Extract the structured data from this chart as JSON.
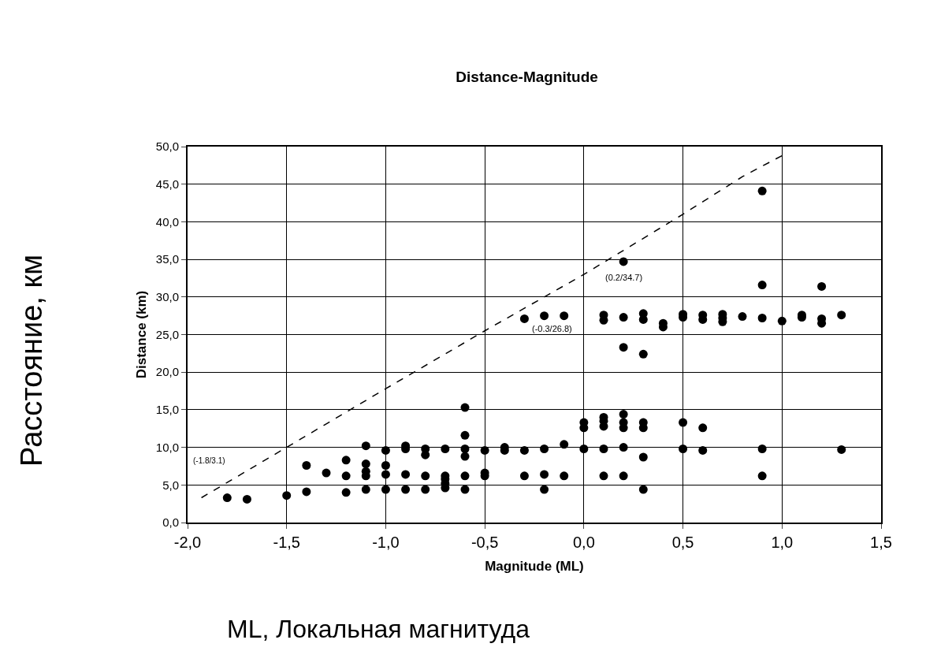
{
  "chart_data": {
    "type": "scatter",
    "title": "Distance-Magnitude",
    "xlabel": "Magnitude (ML)",
    "ylabel": "Distance (km)",
    "series": [
      {
        "type": "scatter",
        "color": "#000000",
        "marker": "circle",
        "x": [
          -1.8,
          -1.7,
          -1.5,
          -1.4,
          -1.4,
          -1.3,
          -1.2,
          -1.2,
          -1.2,
          -1.1,
          -1.1,
          -1.1,
          -1.1,
          -1.1,
          -1.0,
          -1.0,
          -1.0,
          -1.0,
          -0.9,
          -0.9,
          -0.9,
          -0.9,
          -0.8,
          -0.8,
          -0.8,
          -0.8,
          -0.7,
          -0.7,
          -0.7,
          -0.7,
          -0.7,
          -0.6,
          -0.6,
          -0.6,
          -0.6,
          -0.6,
          -0.6,
          -0.5,
          -0.5,
          -0.5,
          -0.4,
          -0.4,
          -0.3,
          -0.3,
          -0.3,
          -0.2,
          -0.2,
          -0.2,
          -0.2,
          -0.1,
          -0.1,
          -0.1,
          0.0,
          0.0,
          0.0,
          0.1,
          0.1,
          0.1,
          0.1,
          0.1,
          0.1,
          0.1,
          0.2,
          0.2,
          0.2,
          0.2,
          0.2,
          0.2,
          0.2,
          0.2,
          0.3,
          0.3,
          0.3,
          0.3,
          0.3,
          0.3,
          0.3,
          0.4,
          0.4,
          0.5,
          0.5,
          0.5,
          0.5,
          0.6,
          0.6,
          0.6,
          0.6,
          0.7,
          0.7,
          0.7,
          0.8,
          0.9,
          0.9,
          0.9,
          0.9,
          0.9,
          1.0,
          1.1,
          1.1,
          1.2,
          1.2,
          1.2,
          1.3,
          1.3
        ],
        "values": [
          3.3,
          3.1,
          3.6,
          4.1,
          7.6,
          6.6,
          4.0,
          6.2,
          8.3,
          4.4,
          6.2,
          6.8,
          7.8,
          10.2,
          4.4,
          6.4,
          7.6,
          9.6,
          4.4,
          6.4,
          9.8,
          10.2,
          4.4,
          6.2,
          9.0,
          9.8,
          4.6,
          5.2,
          5.8,
          6.2,
          9.8,
          4.4,
          6.2,
          8.8,
          9.8,
          11.6,
          15.3,
          6.2,
          6.6,
          9.6,
          9.6,
          10.0,
          6.2,
          9.6,
          27.1,
          4.4,
          6.4,
          9.8,
          27.5,
          6.2,
          10.4,
          27.5,
          9.8,
          12.6,
          13.3,
          6.2,
          9.8,
          12.8,
          13.5,
          14.0,
          26.9,
          27.6,
          6.2,
          10.0,
          12.6,
          13.3,
          14.4,
          23.3,
          27.3,
          34.7,
          4.4,
          8.7,
          12.6,
          13.3,
          22.4,
          27.0,
          27.8,
          26.0,
          26.5,
          9.8,
          13.3,
          27.3,
          27.7,
          9.6,
          12.6,
          27.0,
          27.6,
          26.7,
          27.2,
          27.7,
          27.4,
          6.2,
          9.8,
          27.2,
          31.6,
          44.1,
          26.8,
          27.3,
          27.6,
          26.5,
          27.1,
          31.4,
          9.7,
          27.6
        ]
      },
      {
        "type": "line",
        "color": "#000000",
        "marker": "none",
        "line_style": "dashed",
        "x": [
          -1.93,
          -1.5,
          -1.0,
          -0.5,
          0.0,
          0.5,
          0.8,
          1.0
        ],
        "values": [
          3.3,
          10.0,
          17.8,
          25.5,
          33.0,
          41.0,
          46.0,
          48.8
        ]
      }
    ],
    "xlim": [
      -2.0,
      1.5
    ],
    "xticks": [
      {
        "value": -2.0,
        "label": "-2,0"
      },
      {
        "value": -1.5,
        "label": "-1,5"
      },
      {
        "value": -1.0,
        "label": "-1,0"
      },
      {
        "value": -0.5,
        "label": "-0,5"
      },
      {
        "value": 0.0,
        "label": "0,0"
      },
      {
        "value": 0.5,
        "label": "0,5"
      },
      {
        "value": 1.0,
        "label": "1,0"
      },
      {
        "value": 1.5,
        "label": "1,5"
      }
    ],
    "ylim": [
      0,
      50
    ],
    "yticks": [
      {
        "value": 0,
        "label": "0,0"
      },
      {
        "value": 5,
        "label": "5,0"
      },
      {
        "value": 10,
        "label": "10,0"
      },
      {
        "value": 15,
        "label": "15,0"
      },
      {
        "value": 20,
        "label": "20,0"
      },
      {
        "value": 25,
        "label": "25,0"
      },
      {
        "value": 30,
        "label": "30,0"
      },
      {
        "value": 35,
        "label": "35,0"
      },
      {
        "value": 40,
        "label": "40,0"
      },
      {
        "value": 45,
        "label": "45,0"
      },
      {
        "value": 50,
        "label": "50,0"
      }
    ],
    "grid": true,
    "annotations": [
      "(-1.8/3.1)",
      {
        "text": "(-0.3/26.8)",
        "x": -0.3,
        "y": 26.8
      },
      {
        "text": "(0.2/34.7)",
        "x": 0.2,
        "y": 34.7
      },
      "Расстояние, км",
      "ML, Локальная магнитуда"
    ]
  }
}
